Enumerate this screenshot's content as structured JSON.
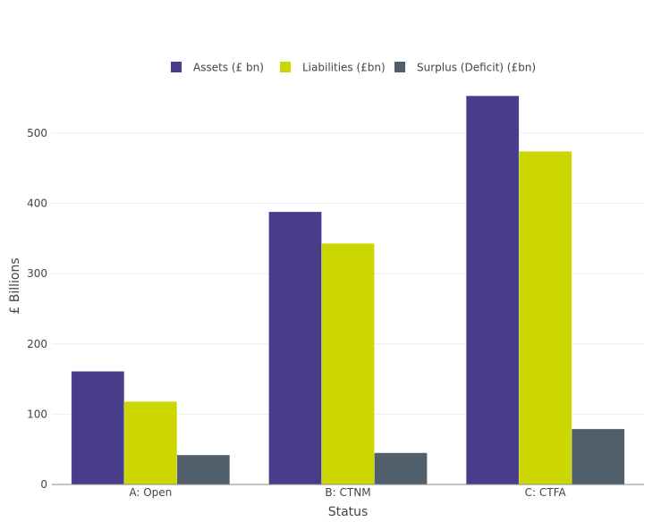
{
  "chart_data": {
    "type": "bar",
    "title": "",
    "xlabel": "Status",
    "ylabel": "£ Billions",
    "categories": [
      "A: Open",
      "B: CTNM",
      "C: CTFA"
    ],
    "series": [
      {
        "name": "Assets (£ bn)",
        "color": "#483d8b",
        "values": [
          161,
          388,
          553
        ]
      },
      {
        "name": "Liabilities (£bn)",
        "color": "#ccd600",
        "values": [
          118,
          343,
          474
        ]
      },
      {
        "name": "Surplus (Deficit) (£bn)",
        "color": "#505f6b",
        "values": [
          42,
          45,
          79
        ]
      }
    ],
    "yticks": [
      0,
      100,
      200,
      300,
      400,
      500
    ],
    "ylim": [
      0,
      566
    ],
    "grid": true,
    "legend_position": "top-center"
  }
}
